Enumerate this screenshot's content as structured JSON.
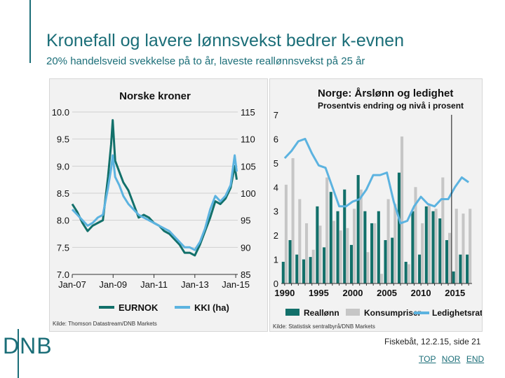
{
  "slide": {
    "title": "Kronefall og lavere lønnsvekst bedrer k-evnen",
    "subtitle": "20% handelsveid svekkelse på to år, laveste reallønnsvekst på 25 år",
    "logo": "DNB",
    "footer": "Fiskebåt, 12.2.15, side 21",
    "nav": [
      "TOP",
      "NOR",
      "END"
    ]
  },
  "colors": {
    "accent": "#1b6e78",
    "eurnok": "#12706a",
    "kki": "#5cb3e0",
    "konsum": "#c6c6c6",
    "bg": "#f2f2f2"
  },
  "chart_data": [
    {
      "type": "line",
      "title": "Norske kroner",
      "source": "Kilde: Thomson Datastream/DNB Markets",
      "x_ticks": [
        "Jan-07",
        "Jan-09",
        "Jan-11",
        "Jan-13",
        "Jan-15"
      ],
      "x_tick_years": [
        2007,
        2009,
        2011,
        2013,
        2015
      ],
      "xlim": [
        2007.0,
        2015.1
      ],
      "y_left_ticks": [
        "10.0",
        "9.5",
        "9.0",
        "8.5",
        "8.0",
        "7.5",
        "7.0"
      ],
      "ylim_left": [
        7.0,
        10.0
      ],
      "y_right_ticks": [
        "115",
        "110",
        "105",
        "100",
        "95",
        "90",
        "85"
      ],
      "ylim_right": [
        85,
        115
      ],
      "series": [
        {
          "name": "EURNOK",
          "axis": "left",
          "x": [
            2007.0,
            2007.25,
            2007.5,
            2007.75,
            2008.0,
            2008.25,
            2008.5,
            2008.75,
            2008.9,
            2008.98,
            2009.1,
            2009.3,
            2009.5,
            2009.75,
            2010.0,
            2010.25,
            2010.5,
            2010.75,
            2011.0,
            2011.25,
            2011.5,
            2011.75,
            2012.0,
            2012.25,
            2012.5,
            2012.75,
            2013.0,
            2013.25,
            2013.5,
            2013.75,
            2014.0,
            2014.25,
            2014.5,
            2014.75,
            2014.95,
            2015.05
          ],
          "y": [
            8.3,
            8.15,
            7.95,
            7.8,
            7.9,
            7.95,
            8.0,
            8.8,
            9.4,
            9.85,
            9.1,
            8.9,
            8.7,
            8.55,
            8.3,
            8.05,
            8.1,
            8.05,
            7.95,
            7.9,
            7.8,
            7.75,
            7.65,
            7.55,
            7.4,
            7.4,
            7.35,
            7.55,
            7.8,
            8.05,
            8.35,
            8.3,
            8.4,
            8.6,
            9.0,
            8.75
          ]
        },
        {
          "name": "KKI (ha)",
          "axis": "right",
          "x": [
            2007.0,
            2007.25,
            2007.5,
            2007.75,
            2008.0,
            2008.25,
            2008.5,
            2008.75,
            2008.9,
            2008.98,
            2009.1,
            2009.3,
            2009.5,
            2009.75,
            2010.0,
            2010.25,
            2010.5,
            2010.75,
            2011.0,
            2011.25,
            2011.5,
            2011.75,
            2012.0,
            2012.25,
            2012.5,
            2012.75,
            2013.0,
            2013.25,
            2013.5,
            2013.75,
            2014.0,
            2014.25,
            2014.5,
            2014.75,
            2014.95,
            2015.05
          ],
          "y": [
            97.0,
            96.0,
            95.0,
            94.0,
            94.5,
            95.5,
            96.0,
            101.0,
            104.5,
            107.0,
            103.0,
            101.5,
            99.5,
            98.0,
            97.0,
            96.0,
            95.5,
            95.0,
            94.5,
            94.0,
            93.5,
            93.0,
            92.0,
            91.0,
            90.0,
            90.0,
            89.5,
            91.0,
            93.5,
            97.0,
            99.5,
            98.5,
            99.5,
            101.5,
            107.0,
            104.0
          ]
        }
      ]
    },
    {
      "type": "bar",
      "title": "Norge: Årslønn og ledighet",
      "subtitle": "Prosentvis endring og nivå i prosent",
      "source": "Kilde: Statistisk sentralbyrå/DNB Markets",
      "x": [
        1990,
        1991,
        1992,
        1993,
        1994,
        1995,
        1996,
        1997,
        1998,
        1999,
        2000,
        2001,
        2002,
        2003,
        2004,
        2005,
        2006,
        2007,
        2008,
        2009,
        2010,
        2011,
        2012,
        2013,
        2014,
        2015,
        2016,
        2017
      ],
      "x_ticks": [
        "1990",
        "1995",
        "2000",
        "2005",
        "2010",
        "2015"
      ],
      "x_tick_years": [
        1990,
        1995,
        2000,
        2005,
        2010,
        2015
      ],
      "ylim": [
        0,
        7
      ],
      "y_ticks": [
        "0",
        "1",
        "2",
        "3",
        "4",
        "5",
        "6",
        "7"
      ],
      "forecast_start": 2014.5,
      "series": [
        {
          "name": "Reallønn",
          "type": "bar",
          "values": [
            0.9,
            1.8,
            1.2,
            1.0,
            1.1,
            3.2,
            1.5,
            3.8,
            3.0,
            3.9,
            1.6,
            4.5,
            3.0,
            2.5,
            3.0,
            1.8,
            1.9,
            4.6,
            0.9,
            3.0,
            1.2,
            3.2,
            3.0,
            2.7,
            1.8,
            0.5,
            1.2,
            1.2
          ]
        },
        {
          "name": "Konsumpriser",
          "type": "bar",
          "values": [
            4.1,
            5.2,
            3.5,
            2.5,
            1.4,
            2.4,
            4.4,
            2.6,
            2.2,
            2.3,
            3.1,
            3.9,
            1.3,
            2.5,
            0.4,
            3.5,
            3.3,
            6.1,
            0.8,
            4.0,
            2.5,
            3.3,
            3.1,
            4.4,
            2.1,
            3.1,
            2.9,
            3.1
          ]
        },
        {
          "name": "Ledighetsrate",
          "type": "line",
          "values": [
            5.2,
            5.5,
            5.9,
            6.0,
            5.4,
            4.9,
            4.8,
            4.0,
            3.2,
            3.2,
            3.4,
            3.5,
            3.9,
            4.5,
            4.5,
            4.6,
            3.4,
            2.5,
            2.6,
            3.2,
            3.6,
            3.3,
            3.2,
            3.5,
            3.5,
            4.0,
            4.4,
            4.2
          ]
        }
      ]
    }
  ]
}
